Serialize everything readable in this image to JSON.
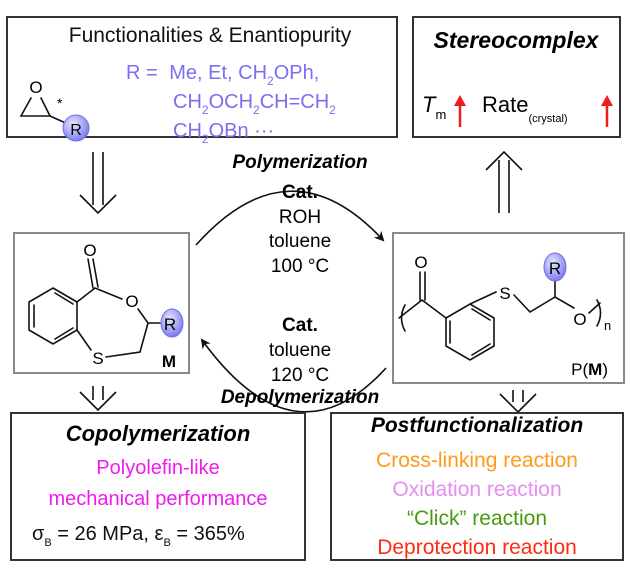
{
  "colors": {
    "r_group": "#7b6ff0",
    "magenta": "#f01af0",
    "cross_linking": "#ff9a1a",
    "oxidation": "#e58ef0",
    "click": "#4a9a10",
    "deprotection": "#ff2a10",
    "up_arrow": "#ee1c1c"
  },
  "top_left": {
    "title": "Functionalities & Enantiopurity",
    "epoxide_o": "O",
    "stereo_mark": "*",
    "r_label": "R",
    "r_prefix": "R = ",
    "line1": [
      "Me, Et, CH",
      "2",
      "OPh,"
    ],
    "line2": [
      "CH",
      "2",
      "OCH",
      "2",
      "CH=CH",
      "2"
    ],
    "line3": [
      "CH",
      "2",
      "OBn ···"
    ]
  },
  "top_right": {
    "title": "Stereocomplex",
    "tm_main": "T",
    "tm_sub": "m",
    "rate_main": "Rate",
    "rate_sub": "(crystal)",
    "trend_icon": "red-up-arrow"
  },
  "center": {
    "polymerization": {
      "label": "Polymerization",
      "cat": "Cat.",
      "conditions": [
        "ROH",
        "toluene",
        "100 °C"
      ]
    },
    "depolymerization": {
      "label": "Depolymerization",
      "cat": "Cat.",
      "conditions": [
        "toluene",
        "120 °C"
      ]
    }
  },
  "monomer": {
    "carbonyl_o": "O",
    "ring_o": "O",
    "s": "S",
    "r": "R",
    "label": "M"
  },
  "polymer": {
    "carbonyl_o": "O",
    "s": "S",
    "o": "O",
    "r": "R",
    "n": "n",
    "label_pre": "P(",
    "label_bold": "M",
    "label_post": ")"
  },
  "bottom_left": {
    "title": "Copolymerization",
    "line1": "Polyolefin-like",
    "line2": "mechanical performance",
    "sigma": "σ",
    "sigma_sub": "B",
    "sigma_val": " = 26 MPa, ",
    "eps": "ε",
    "eps_sub": "B",
    "eps_val": " = 365%"
  },
  "bottom_right": {
    "title": "Postfunctionalization",
    "items": [
      "Cross-linking reaction",
      "Oxidation reaction",
      "“Click” reaction",
      "Deprotection reaction"
    ]
  }
}
